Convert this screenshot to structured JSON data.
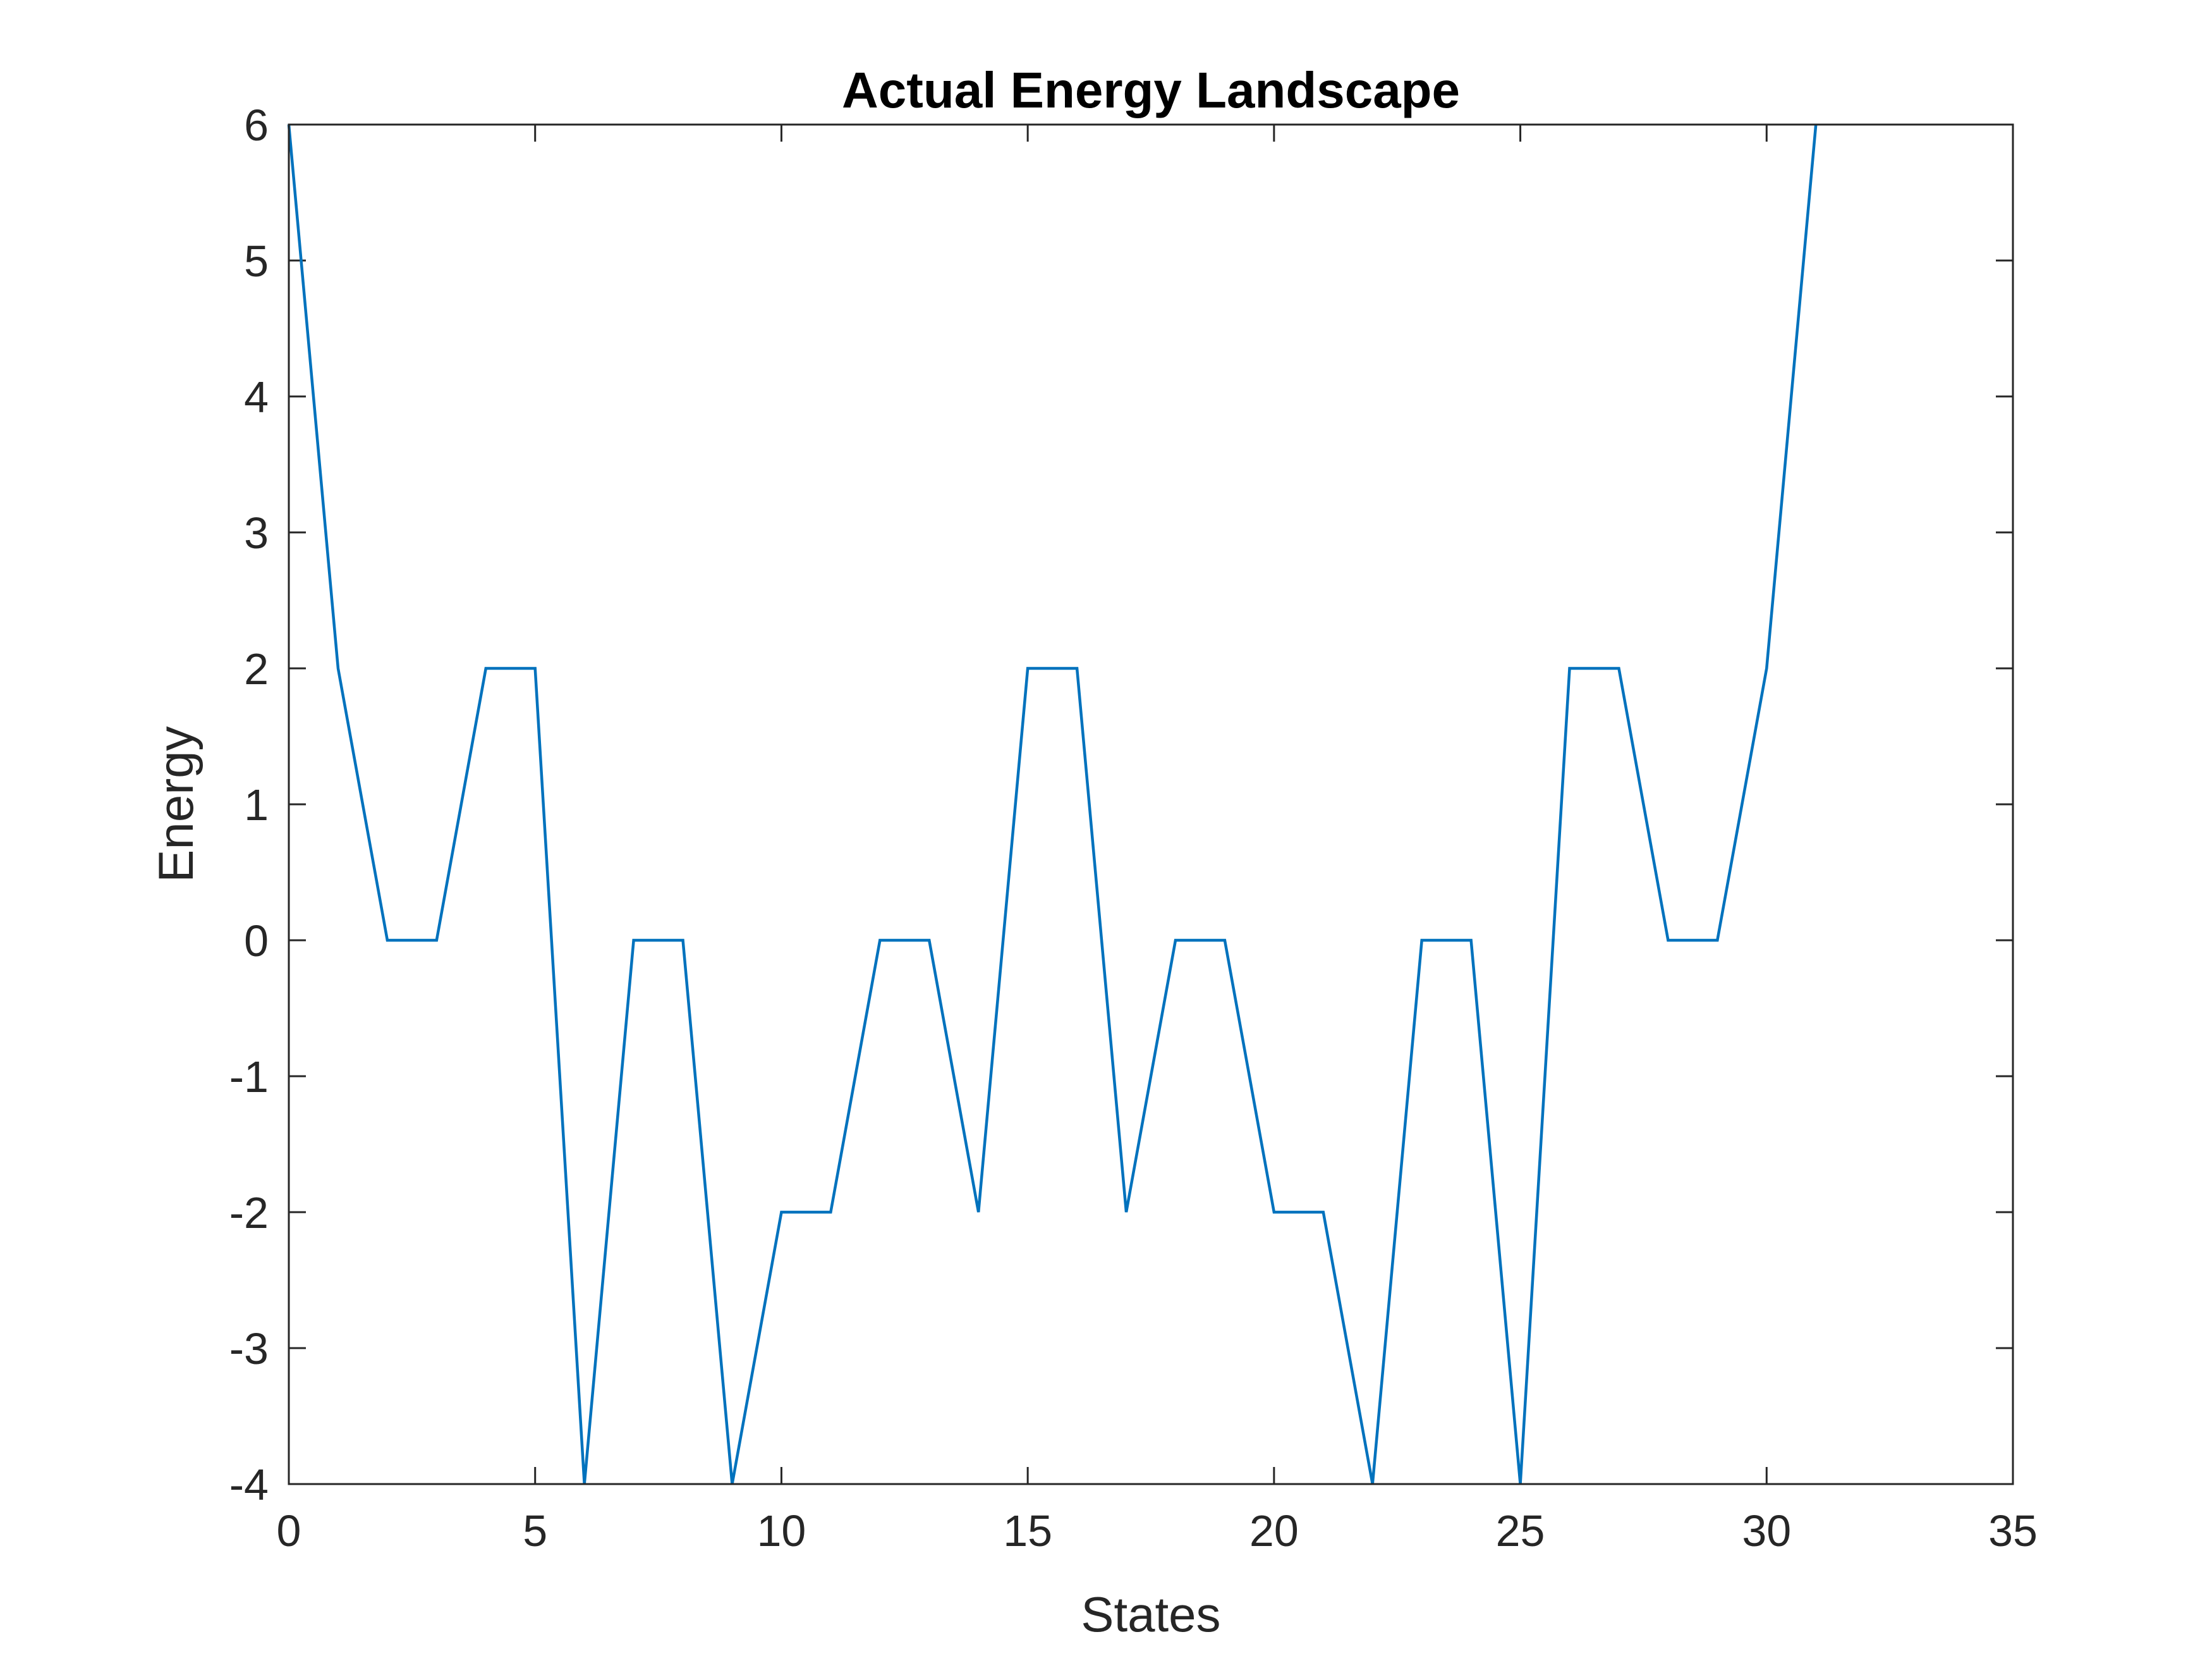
{
  "chart_data": {
    "type": "line",
    "title": "Actual Energy Landscape",
    "xlabel": "States",
    "ylabel": "Energy",
    "xlim": [
      0,
      35
    ],
    "ylim": [
      -4,
      6
    ],
    "xticks": [
      0,
      5,
      10,
      15,
      20,
      25,
      30,
      35
    ],
    "yticks": [
      -4,
      -3,
      -2,
      -1,
      0,
      1,
      2,
      3,
      4,
      5,
      6
    ],
    "grid": false,
    "legend": "none",
    "series": [
      {
        "color": "#0072BD",
        "x": [
          0,
          1,
          2,
          3,
          4,
          5,
          6,
          7,
          8,
          9,
          10,
          11,
          12,
          13,
          14,
          15,
          16,
          17,
          18,
          19,
          20,
          21,
          22,
          23,
          24,
          25,
          26,
          27,
          28,
          29,
          30,
          31
        ],
        "y": [
          6,
          2,
          0,
          0,
          2,
          2,
          -4,
          0,
          0,
          -4,
          -2,
          -2,
          0,
          0,
          -2,
          2,
          2,
          -2,
          0,
          0,
          -2,
          -2,
          -4,
          0,
          0,
          -4,
          2,
          2,
          0,
          0,
          2,
          6
        ]
      }
    ]
  }
}
